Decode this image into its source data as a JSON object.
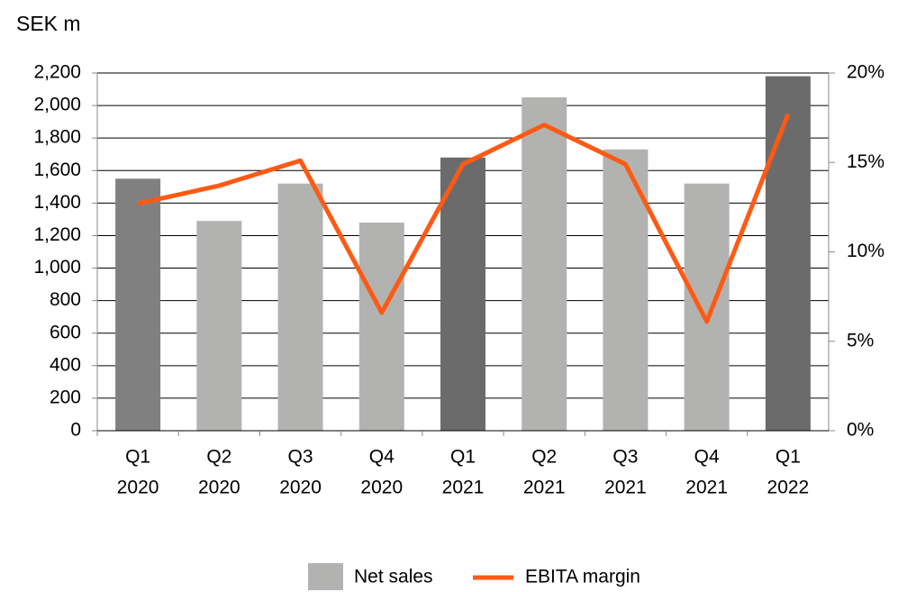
{
  "chart_data": {
    "type": "bar-line",
    "title": "SEK m",
    "categories": [
      [
        "Q1",
        "2020"
      ],
      [
        "Q2",
        "2020"
      ],
      [
        "Q3",
        "2020"
      ],
      [
        "Q4",
        "2020"
      ],
      [
        "Q1",
        "2021"
      ],
      [
        "Q2",
        "2021"
      ],
      [
        "Q3",
        "2021"
      ],
      [
        "Q4",
        "2021"
      ],
      [
        "Q1",
        "2022"
      ]
    ],
    "series": [
      {
        "name": "Net sales",
        "type": "bar",
        "color": "#b2b3b1",
        "bar_colors": [
          "#808080",
          "#b2b3b1",
          "#b2b3b1",
          "#b2b3b1",
          "#6b6b6b",
          "#b2b3b1",
          "#b2b3b1",
          "#b2b3b1",
          "#6b6b6b"
        ],
        "values": [
          1550,
          1290,
          1520,
          1280,
          1680,
          2050,
          1730,
          1520,
          2180
        ]
      },
      {
        "name": "EBITA margin",
        "type": "line",
        "axis": "y2",
        "color": "#ff5a14",
        "values": [
          12.7,
          13.7,
          15.1,
          6.6,
          14.9,
          17.1,
          14.9,
          6.1,
          17.7
        ]
      }
    ],
    "ylim": [
      0,
      2200
    ],
    "yticks": [
      0,
      200,
      400,
      600,
      800,
      {
        "value": 1000,
        "label": "1,000"
      },
      {
        "value": 1200,
        "label": "1,200"
      },
      {
        "value": 1400,
        "label": "1,400"
      },
      {
        "value": 1600,
        "label": "1,600"
      },
      {
        "value": 1800,
        "label": "1,800"
      },
      {
        "value": 2000,
        "label": "2,000"
      },
      {
        "value": 2200,
        "label": "2,200"
      }
    ],
    "y2lim": [
      0,
      20
    ],
    "y2ticks": [
      {
        "value": 0,
        "label": "0%"
      },
      {
        "value": 5,
        "label": "5%"
      },
      {
        "value": 10,
        "label": "10%"
      },
      {
        "value": 15,
        "label": "15%"
      },
      {
        "value": 20,
        "label": "20%"
      }
    ],
    "grid": true,
    "legend": "bottom"
  }
}
